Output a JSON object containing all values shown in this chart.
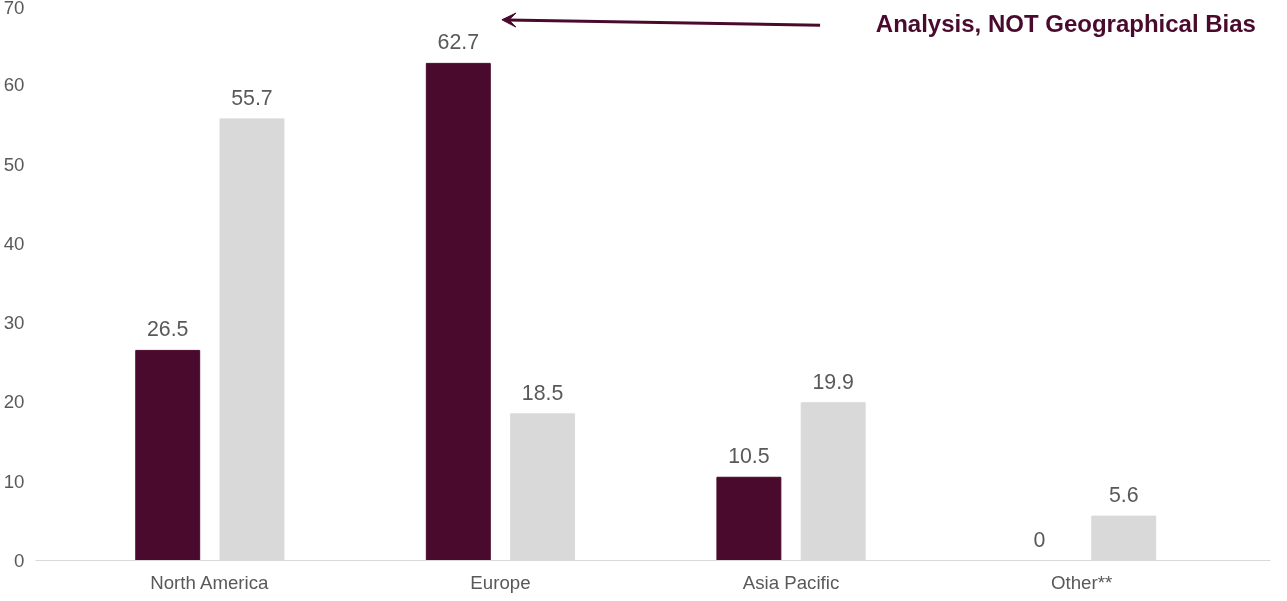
{
  "chart_data": {
    "type": "bar",
    "categories": [
      "North America",
      "Europe",
      "Asia Pacific",
      "Other**"
    ],
    "series": [
      {
        "color": "#4a0a2e",
        "values": [
          26.5,
          62.7,
          10.5,
          0
        ]
      },
      {
        "color": "#d9d9d9",
        "values": [
          55.7,
          18.5,
          19.9,
          5.6
        ]
      }
    ],
    "ylim": [
      0,
      70
    ],
    "yticks": [
      0,
      10,
      20,
      30,
      40,
      50,
      60,
      70
    ],
    "grid": false,
    "legend": false,
    "data_labels": true,
    "annotations": [
      "Analysis, NOT Geographical Bias"
    ]
  }
}
